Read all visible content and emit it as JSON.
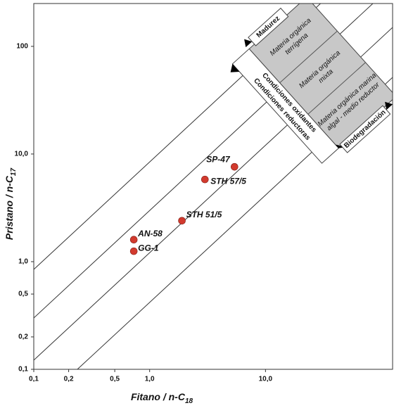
{
  "chart_data": {
    "type": "scatter",
    "x_label": {
      "text": "Fitano / n-C",
      "subscript": "18"
    },
    "y_label": {
      "text": "Pristano / n-C",
      "subscript": "17"
    },
    "log_x": true,
    "log_y": true,
    "xlim": [
      0.1,
      125
    ],
    "ylim": [
      0.1,
      250
    ],
    "xticks": [
      {
        "value": 0.1,
        "label": "0,1"
      },
      {
        "value": 0.2,
        "label": "0,2"
      },
      {
        "value": 0.5,
        "label": "0,5"
      },
      {
        "value": 1,
        "label": "1,0"
      },
      {
        "value": 10,
        "label": "10,0"
      }
    ],
    "yticks": [
      {
        "value": 0.1,
        "label": "0,1"
      },
      {
        "value": 0.2,
        "label": "0,2"
      },
      {
        "value": 0.5,
        "label": "0,5"
      },
      {
        "value": 1,
        "label": "1,0"
      },
      {
        "value": 10,
        "label": "10,0"
      },
      100
    ],
    "color": "#d23a2e",
    "point_labels": [
      "SP-47",
      "STH 57/5",
      "STH 51/5",
      "AN-58",
      "GG-1"
    ],
    "x": [
      5.4,
      3.0,
      1.9,
      0.73,
      0.73
    ],
    "values": [
      7.6,
      5.8,
      2.4,
      1.6,
      1.25
    ],
    "annotations": {
      "maturity": "Madurez",
      "biodegradation": "Biodegradación",
      "reducing": "Condiciones reductoras",
      "oxidizing": "Condiciones oxidantes",
      "terrigenous": [
        "Materia orgánica",
        "terrígena"
      ],
      "mixed": [
        "Materia orgánica",
        "mixta"
      ],
      "marine": [
        "Materia orgánica marina",
        "algal - medio reductor"
      ]
    }
  }
}
